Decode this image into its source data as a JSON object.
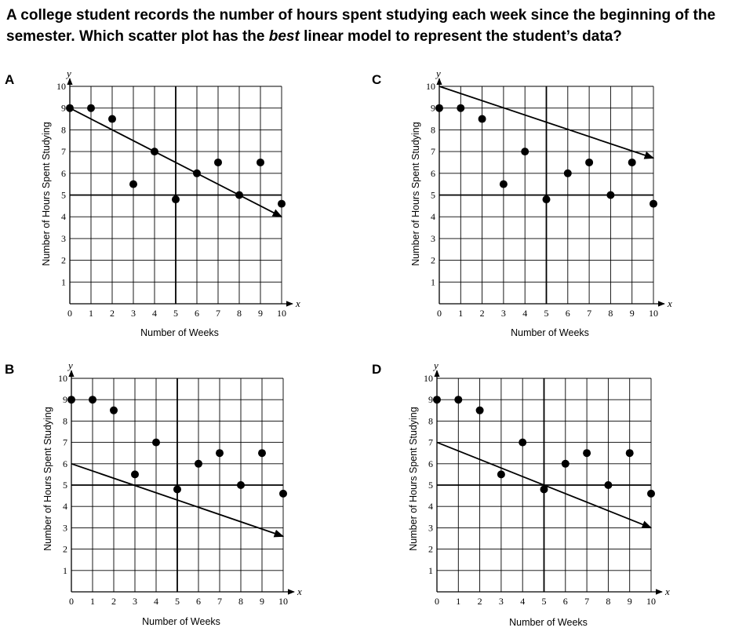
{
  "question": {
    "part1": "A college student records the number of hours spent studying each week since the beginning of the semester. Which scatter plot has the ",
    "emphasis": "best",
    "part2": " linear model to represent the student’s data?"
  },
  "chart_data": [
    {
      "type": "scatter",
      "option": "A",
      "xlabel": "Number of Weeks",
      "ylabel": "Number of Hours Spent Studying",
      "x_var": "x",
      "y_var": "y",
      "xlim": [
        0,
        10
      ],
      "ylim": [
        0,
        10
      ],
      "x_ticks": [
        0,
        1,
        2,
        3,
        4,
        5,
        6,
        7,
        8,
        9,
        10
      ],
      "y_ticks": [
        1,
        2,
        3,
        4,
        5,
        6,
        7,
        8,
        9,
        10
      ],
      "grid": true,
      "points": [
        [
          0,
          9
        ],
        [
          1,
          9
        ],
        [
          2,
          8.5
        ],
        [
          3,
          5.5
        ],
        [
          4,
          7
        ],
        [
          5,
          4.8
        ],
        [
          6,
          6
        ],
        [
          7,
          6.5
        ],
        [
          8,
          5
        ],
        [
          9,
          6.5
        ],
        [
          10,
          4.6
        ]
      ],
      "line": [
        [
          0,
          9
        ],
        [
          10,
          4
        ]
      ]
    },
    {
      "type": "scatter",
      "option": "C",
      "xlabel": "Number of Weeks",
      "ylabel": "Number of Hours Spent Studying",
      "x_var": "x",
      "y_var": "y",
      "xlim": [
        0,
        10
      ],
      "ylim": [
        0,
        10
      ],
      "x_ticks": [
        0,
        1,
        2,
        3,
        4,
        5,
        6,
        7,
        8,
        9,
        10
      ],
      "y_ticks": [
        1,
        2,
        3,
        4,
        5,
        6,
        7,
        8,
        9,
        10
      ],
      "grid": true,
      "points": [
        [
          0,
          9
        ],
        [
          1,
          9
        ],
        [
          2,
          8.5
        ],
        [
          3,
          5.5
        ],
        [
          4,
          7
        ],
        [
          5,
          4.8
        ],
        [
          6,
          6
        ],
        [
          7,
          6.5
        ],
        [
          8,
          5
        ],
        [
          9,
          6.5
        ],
        [
          10,
          4.6
        ]
      ],
      "line": [
        [
          0,
          10
        ],
        [
          10,
          6.7
        ]
      ]
    },
    {
      "type": "scatter",
      "option": "B",
      "xlabel": "Number of Weeks",
      "ylabel": "Number of Hours Spent Studying",
      "x_var": "x",
      "y_var": "y",
      "xlim": [
        0,
        10
      ],
      "ylim": [
        0,
        10
      ],
      "x_ticks": [
        0,
        1,
        2,
        3,
        4,
        5,
        6,
        7,
        8,
        9,
        10
      ],
      "y_ticks": [
        1,
        2,
        3,
        4,
        5,
        6,
        7,
        8,
        9,
        10
      ],
      "grid": true,
      "points": [
        [
          0,
          9
        ],
        [
          1,
          9
        ],
        [
          2,
          8.5
        ],
        [
          3,
          5.5
        ],
        [
          4,
          7
        ],
        [
          5,
          4.8
        ],
        [
          6,
          6
        ],
        [
          7,
          6.5
        ],
        [
          8,
          5
        ],
        [
          9,
          6.5
        ],
        [
          10,
          4.6
        ]
      ],
      "line": [
        [
          0,
          6
        ],
        [
          10,
          2.6
        ]
      ]
    },
    {
      "type": "scatter",
      "option": "D",
      "xlabel": "Number of Weeks",
      "ylabel": "Number of Hours Spent Studying",
      "x_var": "x",
      "y_var": "y",
      "xlim": [
        0,
        10
      ],
      "ylim": [
        0,
        10
      ],
      "x_ticks": [
        0,
        1,
        2,
        3,
        4,
        5,
        6,
        7,
        8,
        9,
        10
      ],
      "y_ticks": [
        1,
        2,
        3,
        4,
        5,
        6,
        7,
        8,
        9,
        10
      ],
      "grid": true,
      "points": [
        [
          0,
          9
        ],
        [
          1,
          9
        ],
        [
          2,
          8.5
        ],
        [
          3,
          5.5
        ],
        [
          4,
          7
        ],
        [
          5,
          4.8
        ],
        [
          6,
          6
        ],
        [
          7,
          6.5
        ],
        [
          8,
          5
        ],
        [
          9,
          6.5
        ],
        [
          10,
          4.6
        ]
      ],
      "line": [
        [
          0,
          7
        ],
        [
          10,
          3
        ]
      ]
    }
  ]
}
